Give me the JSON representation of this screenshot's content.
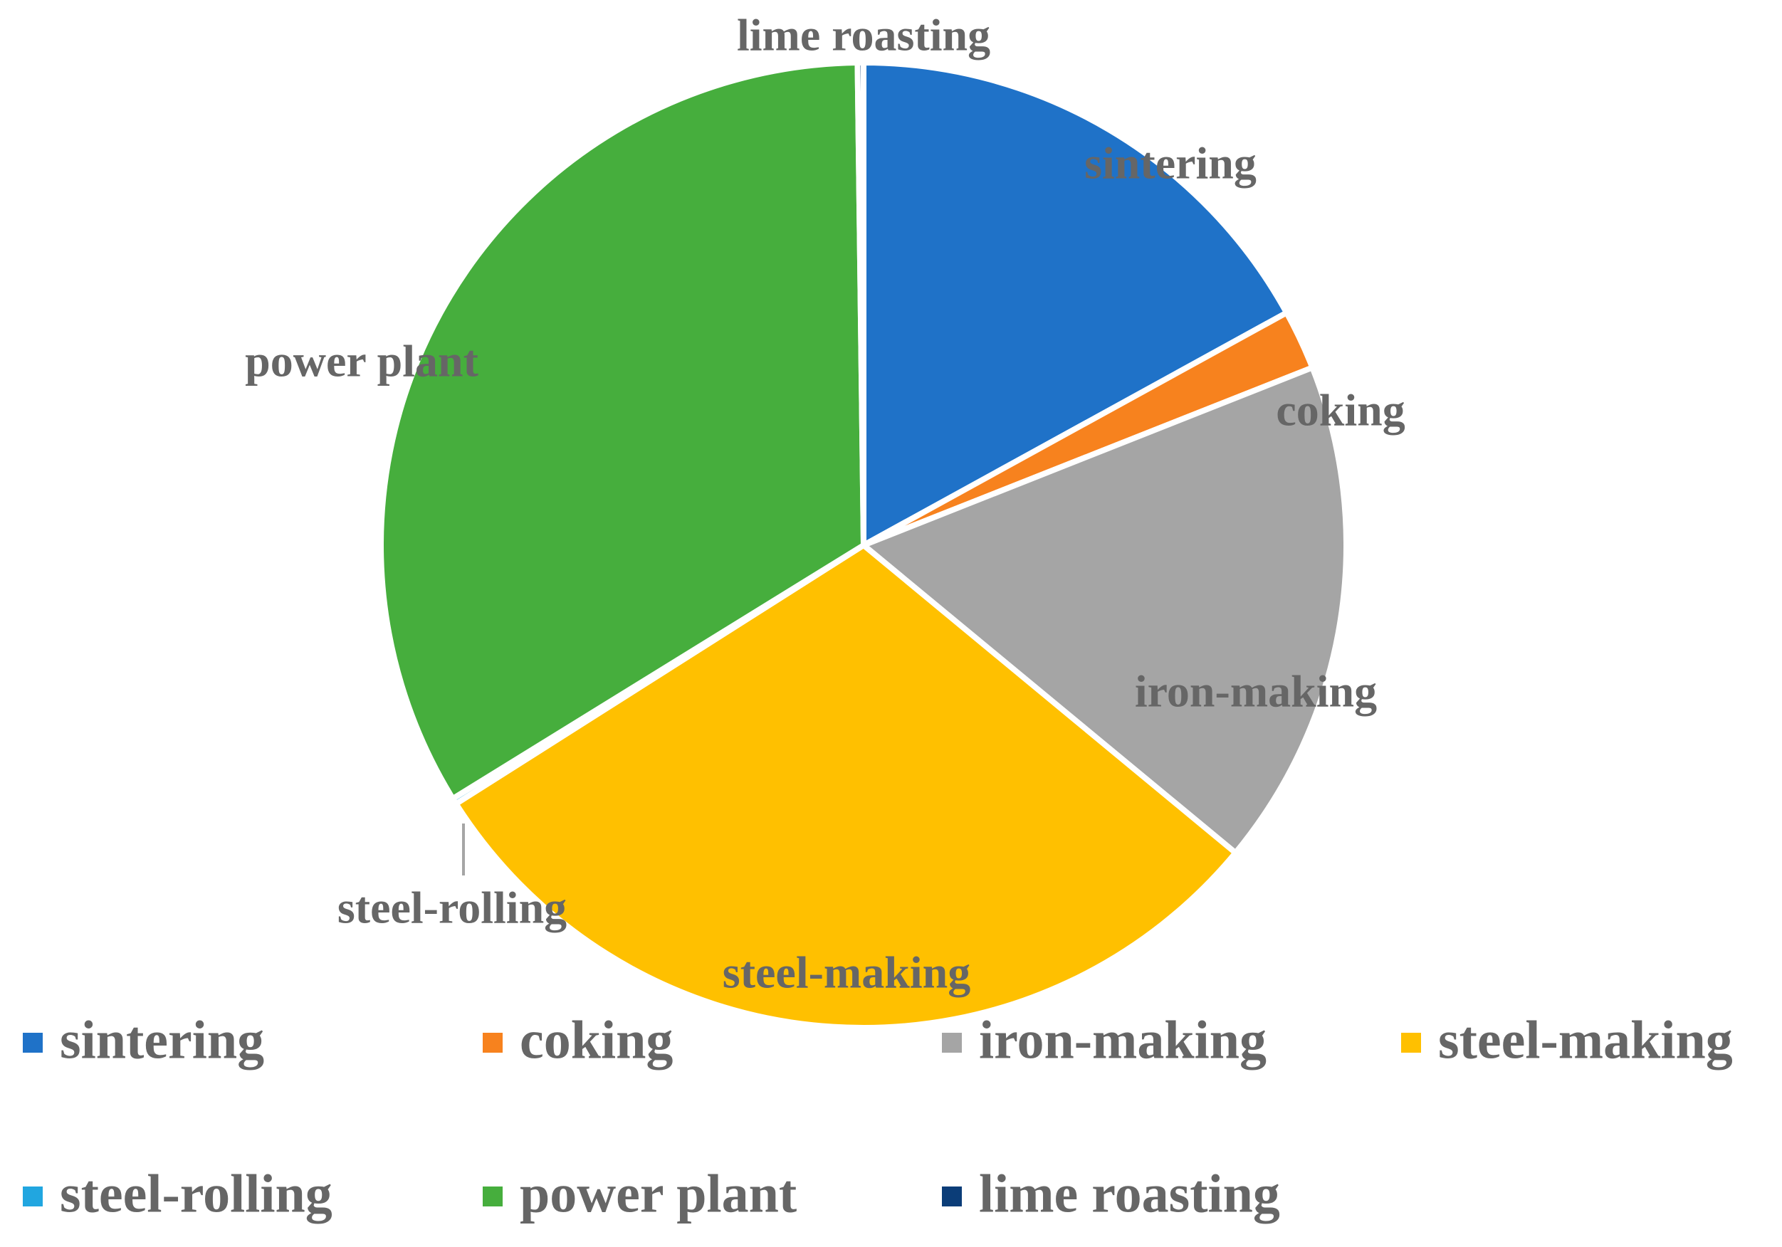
{
  "chart_data": {
    "type": "pie",
    "categories": [
      "sintering",
      "coking",
      "iron-making",
      "steel-making",
      "steel-rolling",
      "power plant",
      "lime roasting"
    ],
    "values": [
      17,
      2,
      17,
      30,
      0.2,
      33.6,
      0.2
    ],
    "colors": [
      "#1f72c8",
      "#f7821e",
      "#a5a5a5",
      "#ffc000",
      "#21a6e0",
      "#46ae3d",
      "#0b3d78"
    ]
  }
}
